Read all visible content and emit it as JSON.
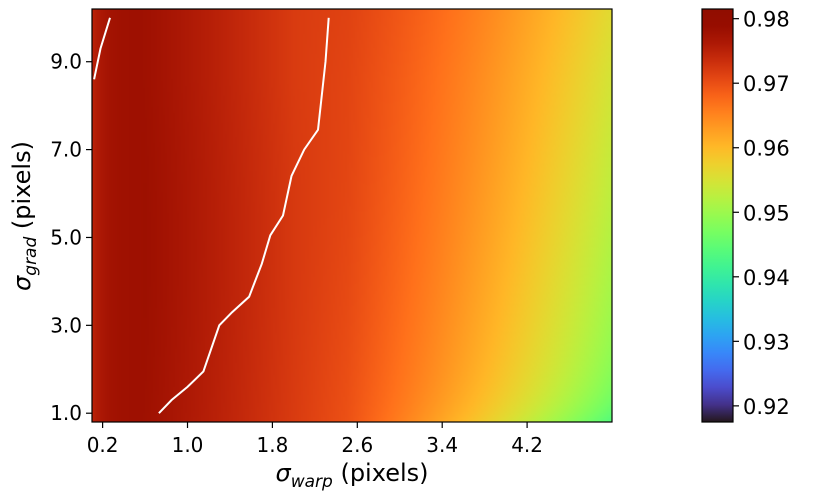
{
  "chart_data": {
    "type": "heatmap",
    "title": "",
    "xlabel": "σ_warp (pixels)",
    "ylabel": "σ_grad (pixels)",
    "x_label_parts": {
      "symbol": "σ",
      "subscript": "warp",
      "suffix": " (pixels)"
    },
    "y_label_parts": {
      "symbol": "σ",
      "subscript": "grad",
      "suffix": " (pixels)"
    },
    "xlim": [
      0.1,
      5.0
    ],
    "ylim": [
      0.8,
      10.2
    ],
    "x_ticks": [
      0.2,
      1.0,
      1.8,
      2.6,
      3.4,
      4.2
    ],
    "x_tick_labels": [
      "0.2",
      "1.0",
      "1.8",
      "2.6",
      "3.4",
      "4.2"
    ],
    "y_ticks": [
      1.0,
      3.0,
      5.0,
      7.0,
      9.0
    ],
    "y_tick_labels": [
      "1.0",
      "3.0",
      "5.0",
      "7.0",
      "9.0"
    ],
    "colormap": "turbo",
    "colorbar": {
      "range": [
        0.9175,
        0.9815
      ],
      "ticks": [
        0.92,
        0.93,
        0.94,
        0.95,
        0.96,
        0.97,
        0.98
      ],
      "tick_labels": [
        "0.92",
        "0.93",
        "0.94",
        "0.95",
        "0.96",
        "0.97",
        "0.98"
      ]
    },
    "contour_color": "#ffffff",
    "contour_level": 0.965,
    "contours": [
      {
        "x": [
          0.12,
          0.18,
          0.27
        ],
        "y": [
          8.6,
          9.3,
          10.0
        ]
      },
      {
        "x": [
          0.73,
          0.85,
          1.0,
          1.15,
          1.3,
          1.42,
          1.58,
          1.7,
          1.78,
          1.9,
          1.98,
          2.1,
          2.23,
          2.3,
          2.33
        ],
        "y": [
          1.0,
          1.3,
          1.6,
          1.95,
          3.0,
          3.3,
          3.65,
          4.4,
          5.05,
          5.5,
          6.4,
          7.0,
          7.45,
          9.0,
          10.0
        ]
      }
    ],
    "grid": false
  }
}
